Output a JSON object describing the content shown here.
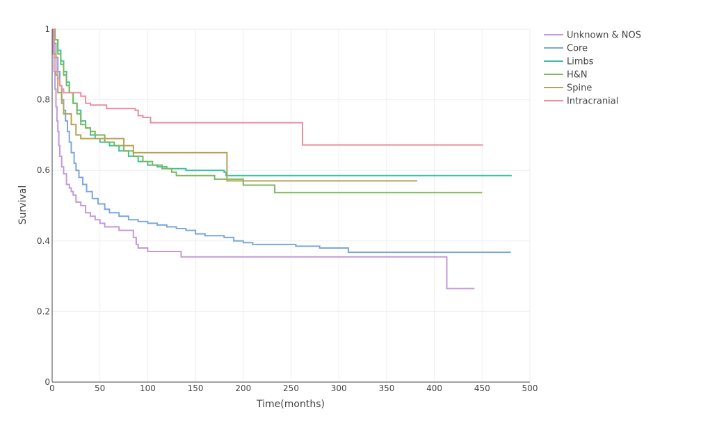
{
  "chart_data": {
    "type": "line",
    "title": "",
    "xlabel": "Time(months)",
    "ylabel": "Survival",
    "xlim": [
      0,
      500
    ],
    "ylim": [
      0,
      1
    ],
    "x_ticks": [
      0,
      50,
      100,
      150,
      200,
      250,
      300,
      350,
      400,
      450,
      500
    ],
    "x_tick_labels": [
      "0",
      "50",
      "100",
      "150",
      "200",
      "250",
      "300",
      "350",
      "400",
      "450",
      "500"
    ],
    "y_ticks": [
      0,
      0.2,
      0.4,
      0.6,
      0.8,
      1
    ],
    "y_tick_labels": [
      "0",
      "0.2",
      "0.4",
      "0.6",
      "0.8",
      "1"
    ],
    "grid": true,
    "legend_position": "top-right",
    "step": true,
    "series": [
      {
        "name": "Unknown & NOS",
        "color": "#c399d9",
        "points": [
          [
            0,
            1
          ],
          [
            1,
            0.93
          ],
          [
            2,
            0.88
          ],
          [
            3,
            0.83
          ],
          [
            4,
            0.78
          ],
          [
            5,
            0.74
          ],
          [
            6,
            0.71
          ],
          [
            7,
            0.67
          ],
          [
            8,
            0.64
          ],
          [
            10,
            0.61
          ],
          [
            12,
            0.59
          ],
          [
            15,
            0.56
          ],
          [
            18,
            0.55
          ],
          [
            20,
            0.54
          ],
          [
            22,
            0.53
          ],
          [
            25,
            0.51
          ],
          [
            30,
            0.5
          ],
          [
            35,
            0.48
          ],
          [
            40,
            0.47
          ],
          [
            45,
            0.46
          ],
          [
            50,
            0.45
          ],
          [
            55,
            0.44
          ],
          [
            70,
            0.43
          ],
          [
            85,
            0.41
          ],
          [
            88,
            0.39
          ],
          [
            90,
            0.38
          ],
          [
            100,
            0.37
          ],
          [
            135,
            0.355
          ],
          [
            413,
            0.355
          ],
          [
            413,
            0.265
          ],
          [
            442,
            0.265
          ]
        ]
      },
      {
        "name": "Core",
        "color": "#7aa7d9",
        "points": [
          [
            0,
            1
          ],
          [
            2,
            0.96
          ],
          [
            4,
            0.92
          ],
          [
            6,
            0.88
          ],
          [
            8,
            0.84
          ],
          [
            10,
            0.8
          ],
          [
            12,
            0.77
          ],
          [
            14,
            0.74
          ],
          [
            16,
            0.71
          ],
          [
            18,
            0.68
          ],
          [
            20,
            0.65
          ],
          [
            23,
            0.62
          ],
          [
            25,
            0.6
          ],
          [
            28,
            0.58
          ],
          [
            32,
            0.56
          ],
          [
            36,
            0.54
          ],
          [
            42,
            0.52
          ],
          [
            48,
            0.505
          ],
          [
            55,
            0.49
          ],
          [
            60,
            0.48
          ],
          [
            70,
            0.47
          ],
          [
            80,
            0.46
          ],
          [
            90,
            0.455
          ],
          [
            100,
            0.45
          ],
          [
            110,
            0.445
          ],
          [
            120,
            0.44
          ],
          [
            130,
            0.435
          ],
          [
            140,
            0.43
          ],
          [
            150,
            0.42
          ],
          [
            160,
            0.415
          ],
          [
            180,
            0.41
          ],
          [
            190,
            0.4
          ],
          [
            200,
            0.395
          ],
          [
            210,
            0.39
          ],
          [
            230,
            0.39
          ],
          [
            255,
            0.385
          ],
          [
            280,
            0.38
          ],
          [
            310,
            0.368
          ],
          [
            480,
            0.368
          ]
        ]
      },
      {
        "name": "Limbs",
        "color": "#3fbf9f",
        "points": [
          [
            0,
            1
          ],
          [
            3,
            0.97
          ],
          [
            6,
            0.94
          ],
          [
            9,
            0.91
          ],
          [
            12,
            0.88
          ],
          [
            15,
            0.85
          ],
          [
            18,
            0.82
          ],
          [
            22,
            0.79
          ],
          [
            26,
            0.77
          ],
          [
            30,
            0.74
          ],
          [
            35,
            0.72
          ],
          [
            40,
            0.7
          ],
          [
            45,
            0.69
          ],
          [
            50,
            0.68
          ],
          [
            60,
            0.67
          ],
          [
            70,
            0.655
          ],
          [
            80,
            0.64
          ],
          [
            90,
            0.625
          ],
          [
            100,
            0.615
          ],
          [
            110,
            0.61
          ],
          [
            120,
            0.605
          ],
          [
            140,
            0.6
          ],
          [
            160,
            0.6
          ],
          [
            180,
            0.595
          ],
          [
            182,
            0.585
          ],
          [
            250,
            0.585
          ],
          [
            481,
            0.585
          ]
        ]
      },
      {
        "name": "H&N",
        "color": "#79b85c",
        "points": [
          [
            0,
            1
          ],
          [
            3,
            0.97
          ],
          [
            6,
            0.93
          ],
          [
            9,
            0.9
          ],
          [
            12,
            0.87
          ],
          [
            15,
            0.84
          ],
          [
            18,
            0.82
          ],
          [
            22,
            0.79
          ],
          [
            26,
            0.76
          ],
          [
            30,
            0.73
          ],
          [
            35,
            0.72
          ],
          [
            40,
            0.71
          ],
          [
            45,
            0.7
          ],
          [
            55,
            0.68
          ],
          [
            65,
            0.67
          ],
          [
            75,
            0.655
          ],
          [
            85,
            0.64
          ],
          [
            95,
            0.625
          ],
          [
            105,
            0.615
          ],
          [
            115,
            0.605
          ],
          [
            125,
            0.595
          ],
          [
            130,
            0.585
          ],
          [
            170,
            0.575
          ],
          [
            200,
            0.558
          ],
          [
            233,
            0.537
          ],
          [
            450,
            0.537
          ]
        ]
      },
      {
        "name": "Spine",
        "color": "#b8a154",
        "points": [
          [
            0,
            1
          ],
          [
            2,
            0.93
          ],
          [
            4,
            0.87
          ],
          [
            6,
            0.82
          ],
          [
            10,
            0.79
          ],
          [
            12,
            0.76
          ],
          [
            20,
            0.73
          ],
          [
            25,
            0.7
          ],
          [
            30,
            0.69
          ],
          [
            55,
            0.69
          ],
          [
            75,
            0.67
          ],
          [
            85,
            0.65
          ],
          [
            182,
            0.65
          ],
          [
            183,
            0.57
          ],
          [
            250,
            0.57
          ],
          [
            382,
            0.57
          ]
        ]
      },
      {
        "name": "Intracranial",
        "color": "#e98ea0",
        "points": [
          [
            0,
            1
          ],
          [
            2,
            0.92
          ],
          [
            4,
            0.88
          ],
          [
            6,
            0.86
          ],
          [
            8,
            0.84
          ],
          [
            10,
            0.83
          ],
          [
            12,
            0.82
          ],
          [
            20,
            0.82
          ],
          [
            30,
            0.81
          ],
          [
            35,
            0.79
          ],
          [
            40,
            0.785
          ],
          [
            57,
            0.775
          ],
          [
            87,
            0.77
          ],
          [
            90,
            0.755
          ],
          [
            95,
            0.75
          ],
          [
            103,
            0.735
          ],
          [
            260,
            0.735
          ],
          [
            262,
            0.672
          ],
          [
            451,
            0.672
          ]
        ]
      }
    ]
  }
}
